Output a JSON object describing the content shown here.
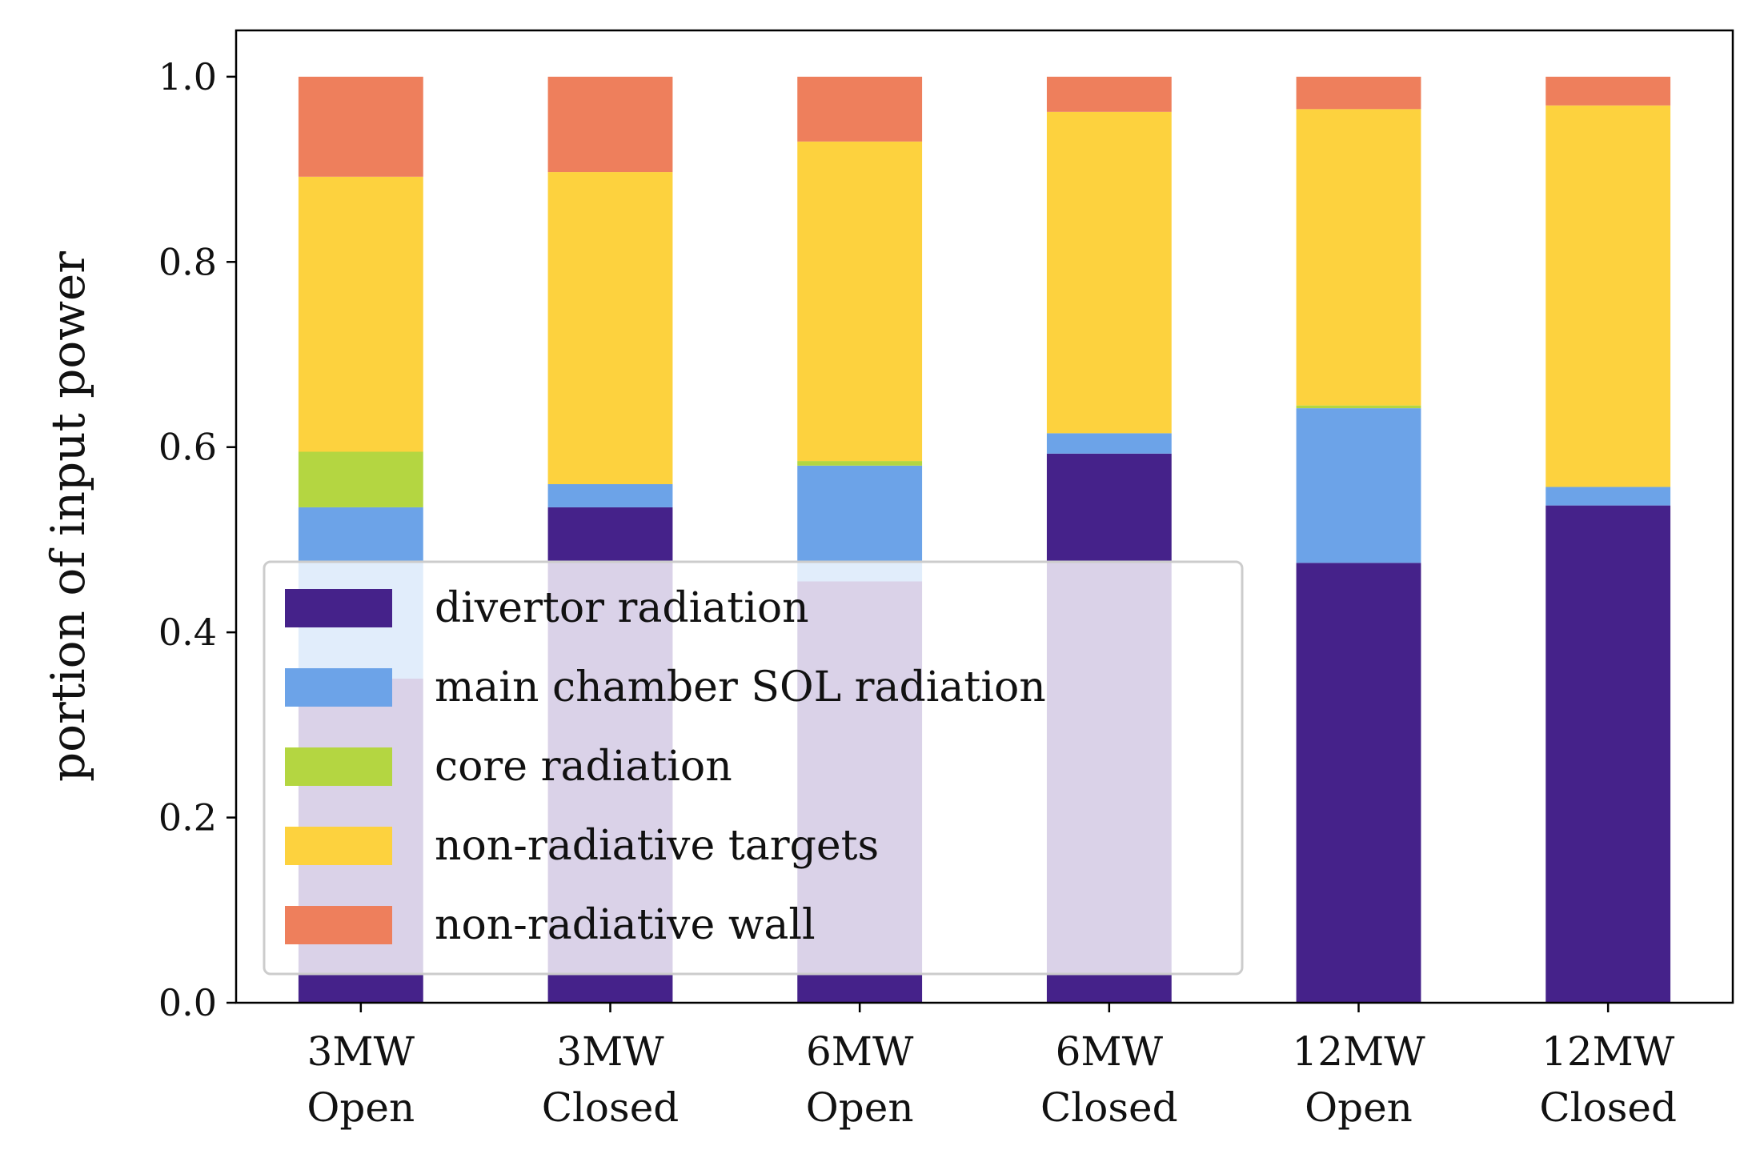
{
  "chart_data": {
    "type": "bar",
    "stacked": true,
    "title": "",
    "xlabel": "",
    "ylabel": "portion of input power",
    "ylim": [
      0,
      1.05
    ],
    "yticks": [
      "0.0",
      "0.2",
      "0.4",
      "0.6",
      "0.8",
      "1.0"
    ],
    "grid": false,
    "legend_position": "lower-left",
    "categories": [
      [
        "3MW",
        "Open"
      ],
      [
        "3MW",
        "Closed"
      ],
      [
        "6MW",
        "Open"
      ],
      [
        "6MW",
        "Closed"
      ],
      [
        "12MW",
        "Open"
      ],
      [
        "12MW",
        "Closed"
      ]
    ],
    "series": [
      {
        "name": "divertor radiation",
        "color": "#45228a",
        "values": [
          0.35,
          0.535,
          0.455,
          0.593,
          0.475,
          0.537
        ]
      },
      {
        "name": "main chamber SOL radiation",
        "color": "#6ca3e8",
        "values": [
          0.185,
          0.025,
          0.125,
          0.022,
          0.167,
          0.02
        ]
      },
      {
        "name": "core radiation",
        "color": "#b4d641",
        "values": [
          0.06,
          0.0,
          0.005,
          0.0,
          0.003,
          0.0
        ]
      },
      {
        "name": "non-radiative targets",
        "color": "#fdd23e",
        "values": [
          0.297,
          0.337,
          0.345,
          0.347,
          0.32,
          0.412
        ]
      },
      {
        "name": "non-radiative wall",
        "color": "#ee7f5c",
        "values": [
          0.108,
          0.103,
          0.07,
          0.038,
          0.035,
          0.031
        ]
      }
    ]
  }
}
